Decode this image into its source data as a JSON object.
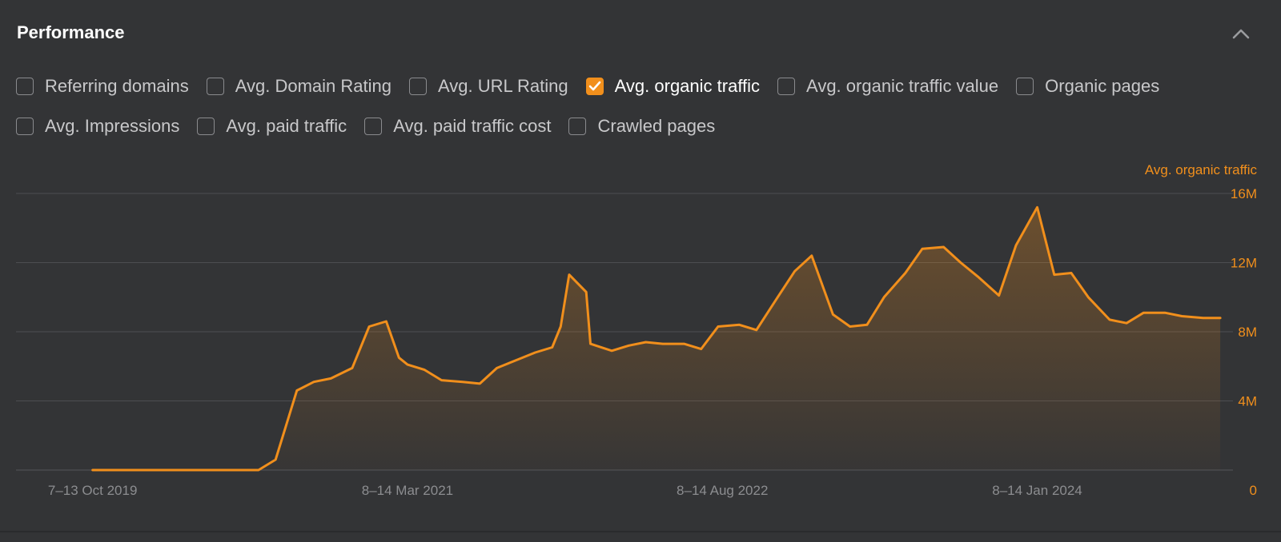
{
  "panel": {
    "title": "Performance"
  },
  "metrics_row1": [
    {
      "label": "Referring domains",
      "checked": false
    },
    {
      "label": "Avg. Domain Rating",
      "checked": false
    },
    {
      "label": "Avg. URL Rating",
      "checked": false
    },
    {
      "label": "Avg. organic traffic",
      "checked": true
    },
    {
      "label": "Avg. organic traffic value",
      "checked": false
    },
    {
      "label": "Organic pages",
      "checked": false
    }
  ],
  "metrics_row2": [
    {
      "label": "Avg. Impressions",
      "checked": false
    },
    {
      "label": "Avg. paid traffic",
      "checked": false
    },
    {
      "label": "Avg. paid traffic cost",
      "checked": false
    },
    {
      "label": "Crawled pages",
      "checked": false
    }
  ],
  "colors": {
    "accent": "#f18f1c",
    "background": "#333436",
    "grid": "#4d4e51"
  },
  "chart_data": {
    "type": "area",
    "series": [
      {
        "name": "Avg. organic traffic",
        "color": "#f18f1c",
        "x": [
          "2019-10-07",
          "2020-01-06",
          "2020-04-06",
          "2020-07-06",
          "2020-08-03",
          "2020-09-07",
          "2020-10-05",
          "2020-11-02",
          "2020-12-07",
          "2021-01-04",
          "2021-02-01",
          "2021-02-22",
          "2021-03-08",
          "2021-04-05",
          "2021-05-03",
          "2021-06-07",
          "2021-07-05",
          "2021-08-02",
          "2021-09-06",
          "2021-10-04",
          "2021-11-01",
          "2021-11-15",
          "2021-11-29",
          "2021-12-27",
          "2022-01-03",
          "2022-02-07",
          "2022-03-07",
          "2022-04-04",
          "2022-05-02",
          "2022-06-06",
          "2022-07-04",
          "2022-08-01",
          "2022-09-05",
          "2022-10-03",
          "2022-11-07",
          "2022-12-05",
          "2023-01-02",
          "2023-02-06",
          "2023-03-06",
          "2023-04-03",
          "2023-05-01",
          "2023-06-05",
          "2023-07-03",
          "2023-08-07",
          "2023-09-04",
          "2023-10-02",
          "2023-11-06",
          "2023-12-04",
          "2024-01-08",
          "2024-02-05",
          "2024-03-04",
          "2024-04-01",
          "2024-05-06",
          "2024-06-03",
          "2024-07-01",
          "2024-08-05",
          "2024-09-02",
          "2024-10-07",
          "2024-11-04"
        ],
        "values": [
          0,
          0,
          0,
          0,
          0.6,
          4.6,
          5.1,
          5.3,
          5.9,
          8.3,
          8.6,
          6.5,
          6.1,
          5.8,
          5.2,
          5.1,
          5.0,
          5.9,
          6.4,
          6.8,
          7.1,
          8.3,
          11.3,
          10.3,
          7.3,
          6.9,
          7.2,
          7.4,
          7.3,
          7.3,
          7.0,
          8.3,
          8.4,
          8.1,
          10.0,
          11.5,
          12.4,
          9.0,
          8.3,
          8.4,
          10.0,
          11.4,
          12.8,
          12.9,
          12.0,
          11.2,
          10.1,
          13.0,
          15.2,
          11.3,
          11.4,
          10.0,
          8.7,
          8.5,
          9.1,
          9.1,
          8.9,
          8.8,
          8.8
        ],
        "unit": "M"
      }
    ],
    "x_tick_labels": [
      "7–13 Oct 2019",
      "8–14 Mar 2021",
      "8–14 Aug 2022",
      "8–14 Jan 2024"
    ],
    "x_tick_dates": [
      "2019-10-07",
      "2021-03-08",
      "2022-08-08",
      "2024-01-08"
    ],
    "y_ticks": [
      0,
      4,
      8,
      12,
      16
    ],
    "y_tick_labels": [
      "0",
      "4M",
      "8M",
      "12M",
      "16M"
    ],
    "y_axis_title": "Avg. organic traffic",
    "x_range": [
      "2019-06-03",
      "2024-11-25"
    ],
    "ylim": [
      0,
      16
    ],
    "y_axis_position": "right",
    "grid": true,
    "legend": "none"
  }
}
